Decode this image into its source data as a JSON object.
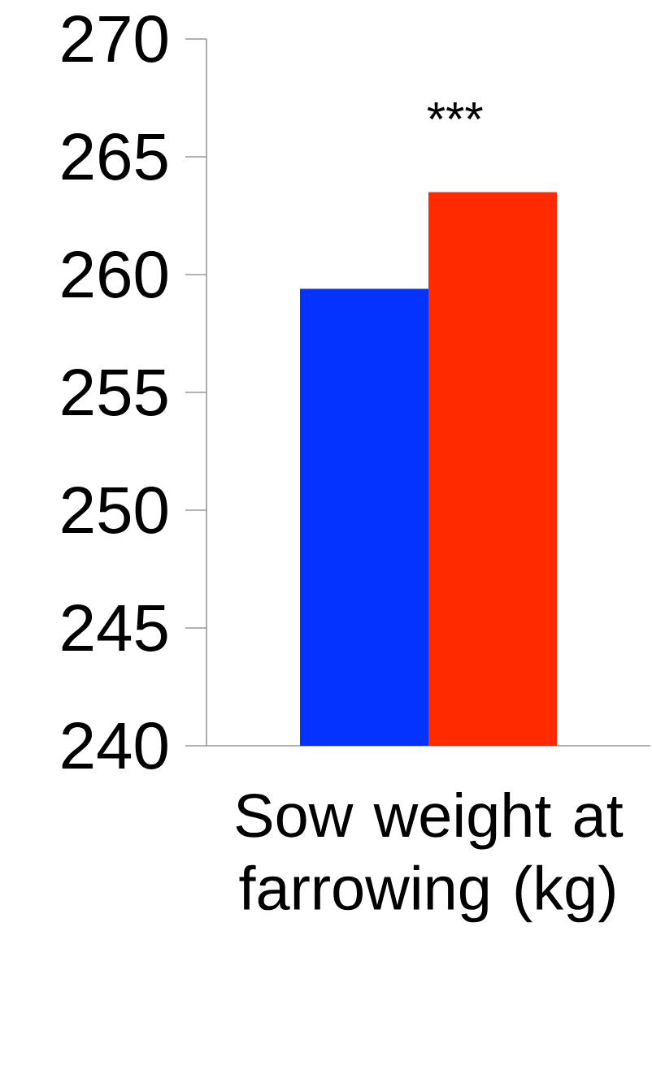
{
  "chart_data": {
    "type": "bar",
    "categories": [
      "Sow weight at farrowing (kg)"
    ],
    "series": [
      {
        "color": "#0433ff",
        "values": [
          259.4
        ]
      },
      {
        "color": "#ff2a00",
        "values": [
          263.5
        ]
      }
    ],
    "ylim": [
      240,
      270
    ],
    "yticks": [
      240,
      245,
      250,
      255,
      260,
      265,
      270
    ],
    "annotations": [
      "***"
    ]
  }
}
